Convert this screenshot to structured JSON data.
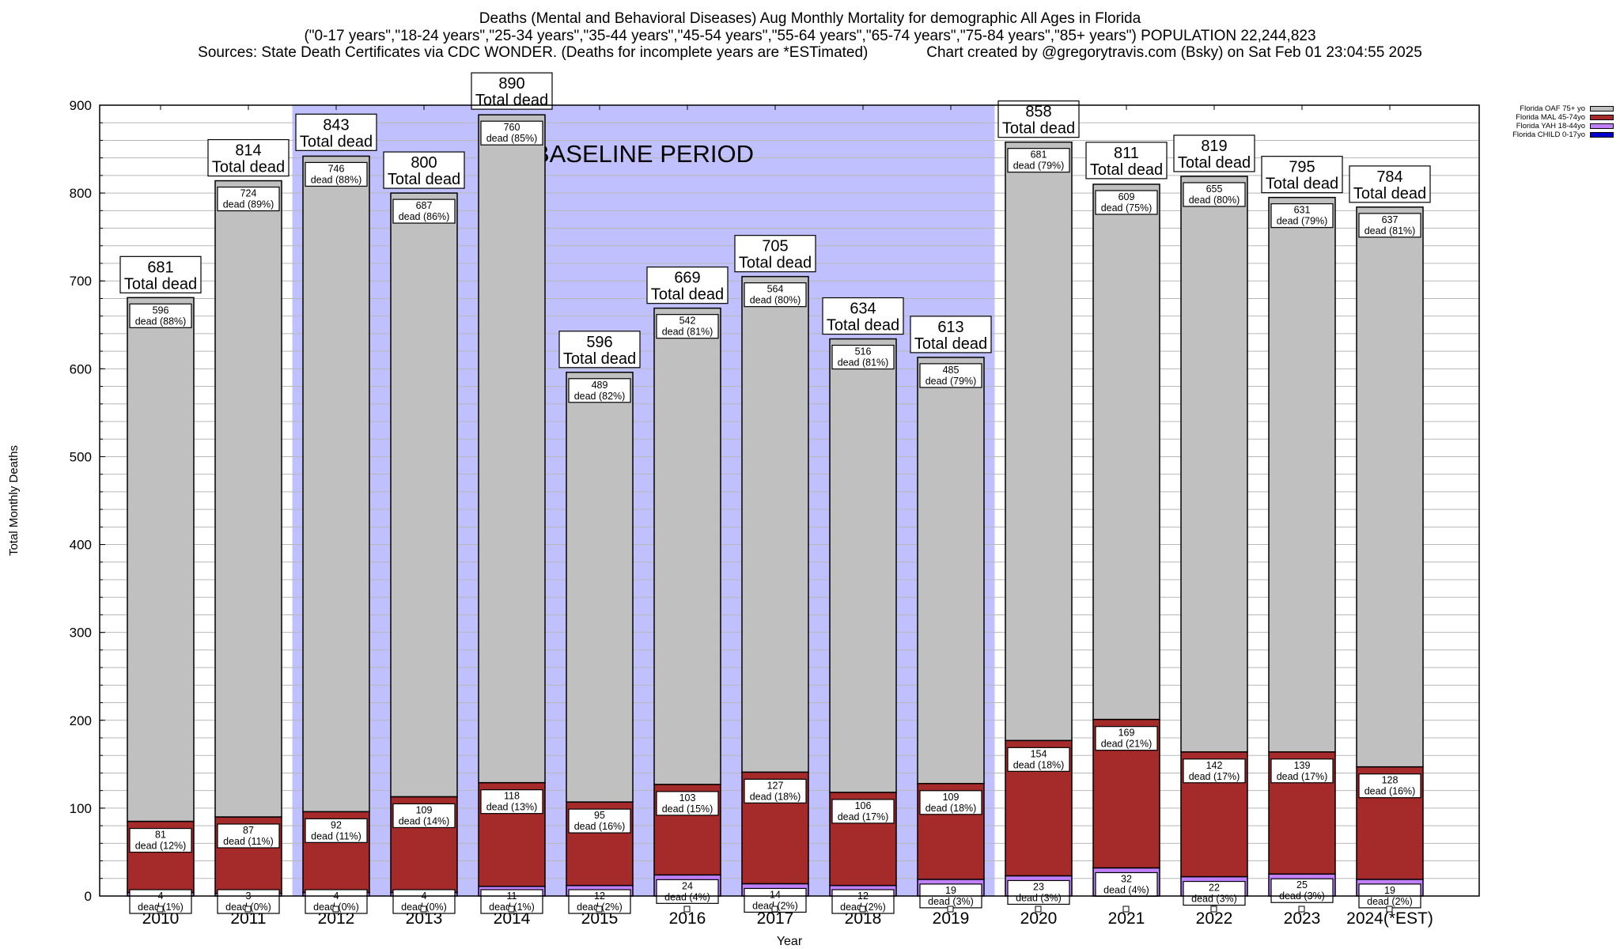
{
  "chart_data": {
    "type": "bar",
    "stacked": true,
    "title": "Deaths (Mental and Behavioral Diseases) Aug Monthly Mortality for demographic All Ages in Florida",
    "subtitle": "(\"0-17 years\",\"18-24 years\",\"25-34 years\",\"35-44 years\",\"45-54 years\",\"55-64 years\",\"65-74 years\",\"75-84 years\",\"85+ years\") POPULATION 22,244,823",
    "sources": "Sources: State Death Certificates via CDC WONDER. (Deaths for incomplete years are *ESTimated)",
    "credit": "Chart created by @gregorytravis.com (Bsky) on Sat Feb 01 23:04:55 2025",
    "xlabel": "Year",
    "ylabel": "Total Monthly Deaths",
    "ylim": [
      0,
      900
    ],
    "yticks": [
      0,
      100,
      200,
      300,
      400,
      500,
      600,
      700,
      800,
      900
    ],
    "minor_grid_step": 20,
    "grid": true,
    "legend_position": "top-right",
    "annotation": {
      "text": "BASELINE PERIOD",
      "range_start": "2012",
      "range_end": "2019",
      "color": "#c0c0ff"
    },
    "categories": [
      "2010",
      "2011",
      "2012",
      "2013",
      "2014",
      "2015",
      "2016",
      "2017",
      "2018",
      "2019",
      "2020",
      "2021",
      "2022",
      "2023",
      "2024(*EST)"
    ],
    "series": [
      {
        "name": "Florida CHILD 0-17yo",
        "color": "#0000cc",
        "values": [
          0,
          0,
          0,
          0,
          0,
          0,
          0,
          0,
          0,
          0,
          0,
          0,
          0,
          0,
          0
        ]
      },
      {
        "name": "Florida YAH 18-44yo",
        "color": "#c080ff",
        "values": [
          4,
          3,
          4,
          4,
          11,
          12,
          24,
          14,
          12,
          19,
          23,
          32,
          22,
          25,
          19
        ]
      },
      {
        "name": "Florida MAL 45-74yo",
        "color": "#a52a2a",
        "values": [
          81,
          87,
          92,
          109,
          118,
          95,
          103,
          127,
          106,
          109,
          154,
          169,
          142,
          139,
          128
        ]
      },
      {
        "name": "Florida OAF 75+ yo",
        "color": "#c0c0c0",
        "values": [
          596,
          724,
          746,
          687,
          760,
          489,
          542,
          564,
          516,
          485,
          681,
          609,
          655,
          631,
          637
        ]
      }
    ],
    "totals": [
      681,
      814,
      843,
      800,
      890,
      596,
      669,
      705,
      634,
      613,
      858,
      811,
      819,
      795,
      784
    ],
    "percent_labels": {
      "Florida YAH 18-44yo": [
        "1%",
        "0%",
        "0%",
        "0%",
        "1%",
        "2%",
        "4%",
        "2%",
        "2%",
        "3%",
        "3%",
        "4%",
        "3%",
        "3%",
        "2%"
      ],
      "Florida MAL 45-74yo": [
        "12%",
        "11%",
        "11%",
        "14%",
        "13%",
        "16%",
        "15%",
        "18%",
        "17%",
        "18%",
        "18%",
        "21%",
        "17%",
        "17%",
        "16%"
      ],
      "Florida OAF 75+ yo": [
        "88%",
        "89%",
        "88%",
        "86%",
        "85%",
        "82%",
        "81%",
        "80%",
        "81%",
        "79%",
        "79%",
        "75%",
        "80%",
        "79%",
        "81%"
      ]
    },
    "total_label_suffix": "Total dead",
    "segment_label_suffix": "dead",
    "legend_order": [
      "Florida OAF 75+ yo",
      "Florida MAL 45-74yo",
      "Florida YAH 18-44yo",
      "Florida CHILD 0-17yo"
    ]
  }
}
